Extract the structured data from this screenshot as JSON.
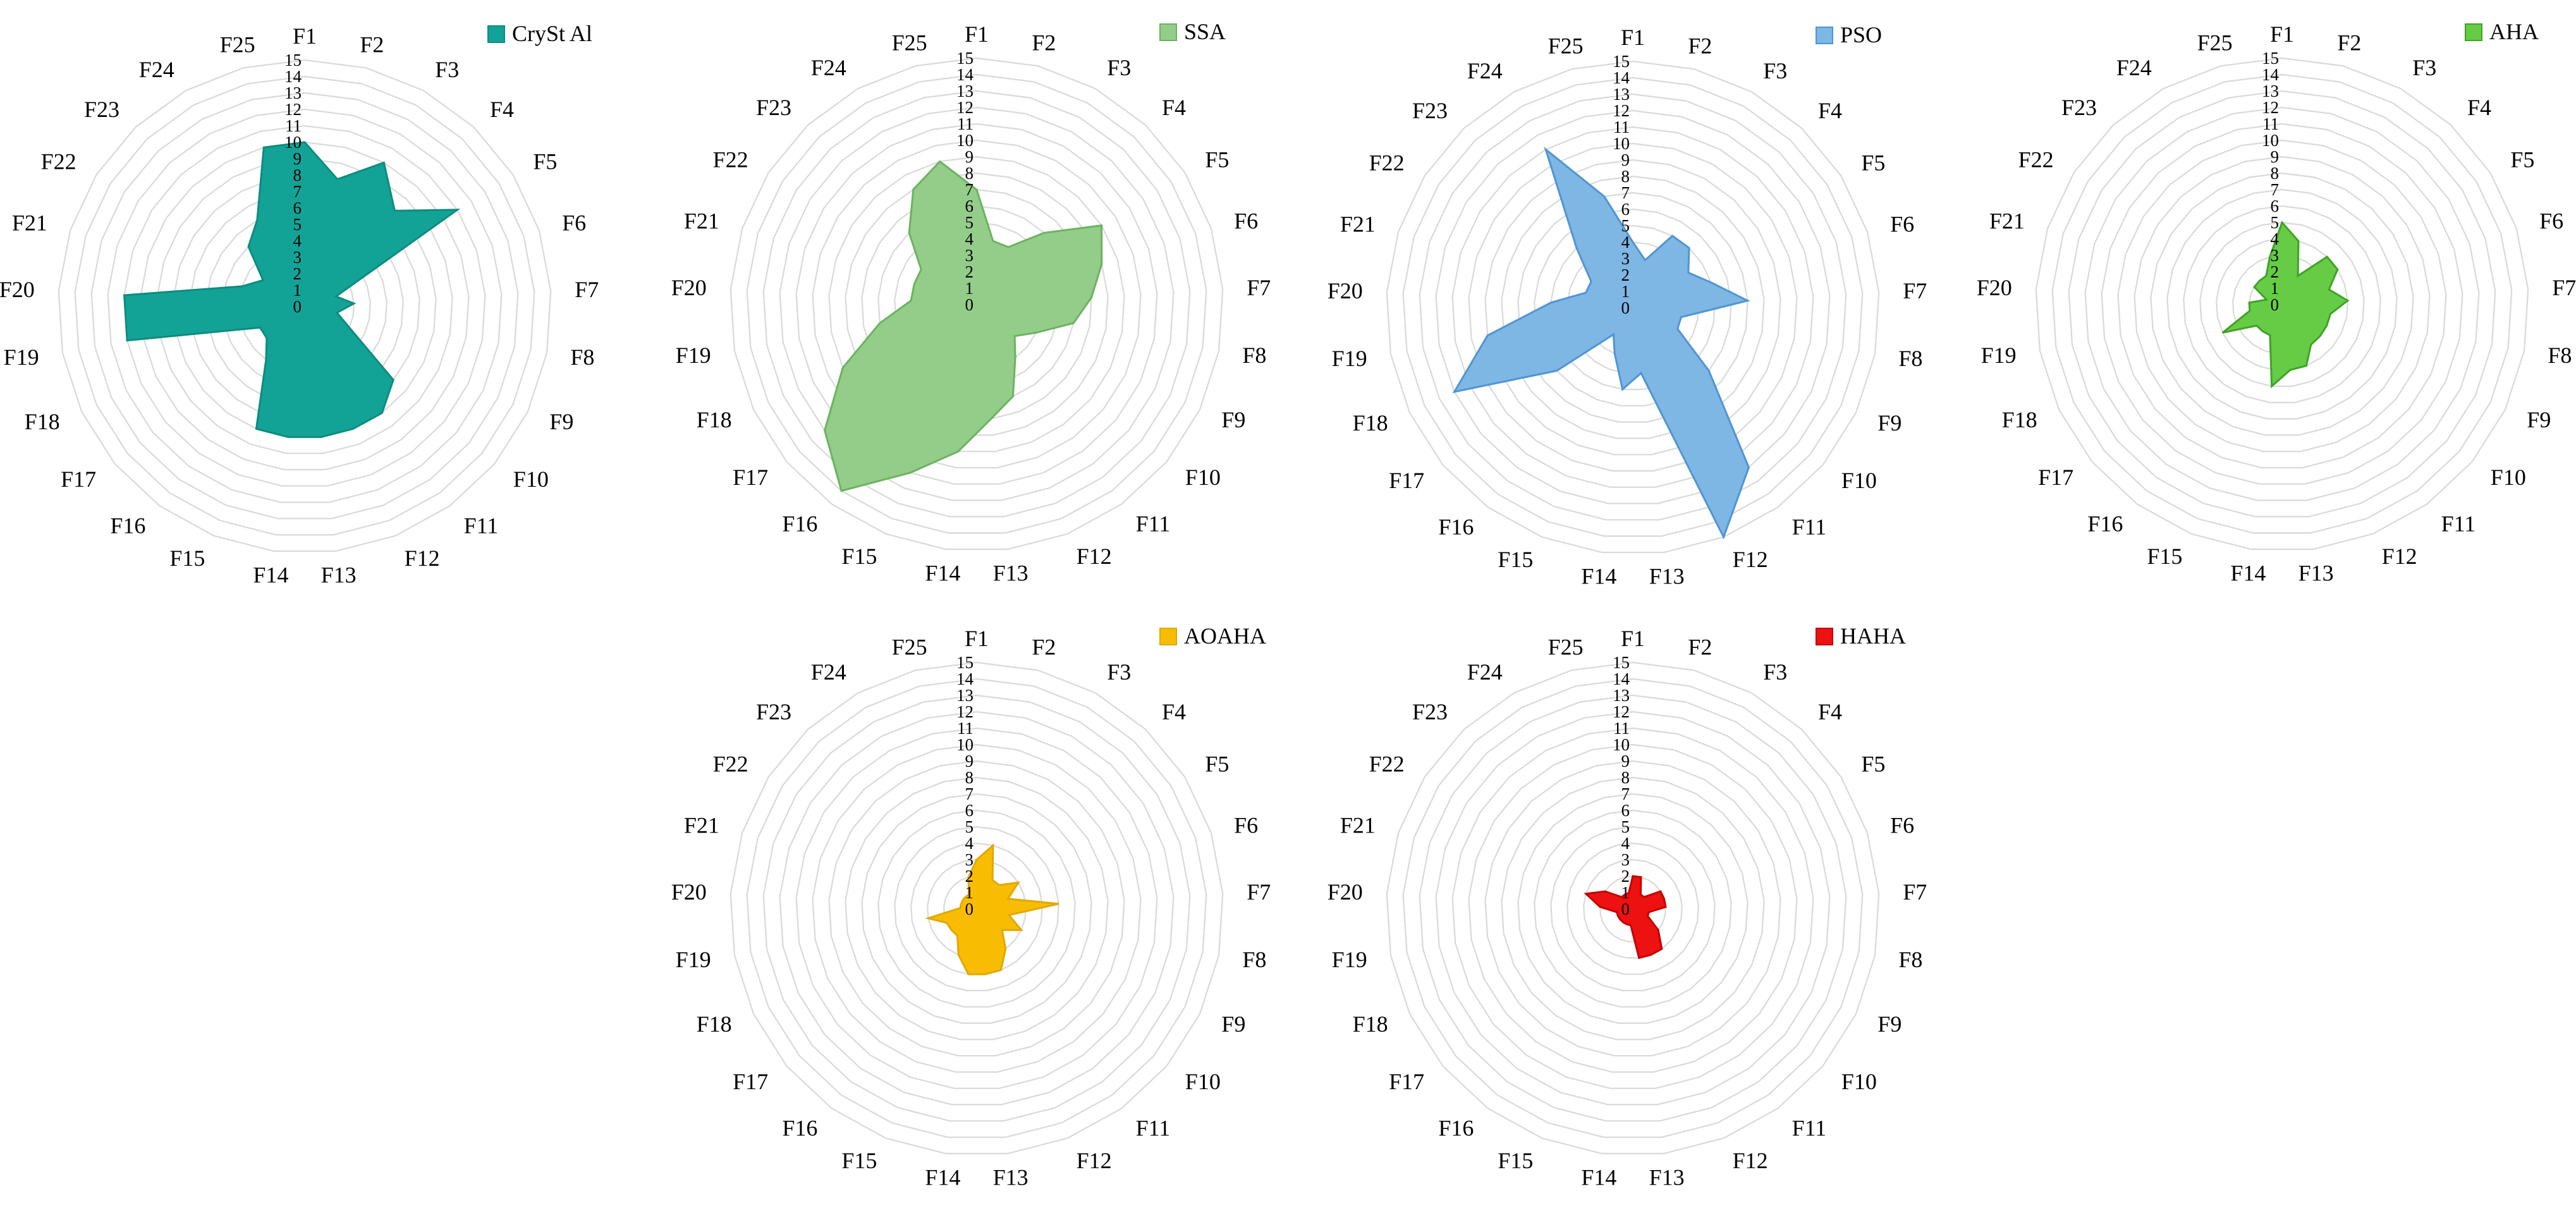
{
  "chart_data": [
    {
      "type": "radar",
      "series": [
        {
          "name": "CrySt Al",
          "values": [
            10,
            8,
            10,
            8,
            11,
            2,
            3,
            2,
            3,
            7,
            8,
            8,
            8,
            8,
            8,
            4,
            3,
            3,
            11,
            11,
            4,
            3,
            5,
            6,
            10
          ]
        }
      ],
      "categories": [
        "F1",
        "F2",
        "F3",
        "F4",
        "F5",
        "F6",
        "F7",
        "F8",
        "F9",
        "F10",
        "F11",
        "F12",
        "F13",
        "F14",
        "F15",
        "F16",
        "F17",
        "F18",
        "F19",
        "F20",
        "F21",
        "F22",
        "F23",
        "F24",
        "F25"
      ],
      "ticks": [
        "0",
        "1",
        "2",
        "3",
        "4",
        "5",
        "6",
        "7",
        "8",
        "9",
        "10",
        "11",
        "12",
        "13",
        "14",
        "15"
      ],
      "rmax": 15,
      "color": "#13a396",
      "stroke": "#0c8c80",
      "legend_position": "top-right",
      "grid": true
    },
    {
      "type": "radar",
      "series": [
        {
          "name": "SSA",
          "values": [
            7,
            4,
            4,
            6,
            9,
            8,
            7,
            6,
            4,
            3,
            4,
            6,
            7,
            9,
            11,
            14,
            12,
            9,
            6,
            4,
            4,
            4,
            6,
            8,
            9
          ]
        }
      ],
      "categories": [
        "F1",
        "F2",
        "F3",
        "F4",
        "F5",
        "F6",
        "F7",
        "F8",
        "F9",
        "F10",
        "F11",
        "F12",
        "F13",
        "F14",
        "F15",
        "F16",
        "F17",
        "F18",
        "F19",
        "F20",
        "F21",
        "F22",
        "F23",
        "F24",
        "F25"
      ],
      "ticks": [
        "0",
        "1",
        "2",
        "3",
        "4",
        "5",
        "6",
        "7",
        "8",
        "9",
        "10",
        "11",
        "12",
        "13",
        "14",
        "15"
      ],
      "rmax": 15,
      "color": "#93cd89",
      "stroke": "#6bb35f",
      "legend_position": "top-right",
      "grid": true
    },
    {
      "type": "radar",
      "series": [
        {
          "name": "PSO",
          "values": [
            4,
            3,
            5,
            5,
            4,
            5,
            7,
            3,
            3,
            6,
            12,
            15,
            4,
            5,
            3,
            2,
            6,
            12,
            9,
            5,
            3,
            3,
            5,
            11,
            7
          ]
        }
      ],
      "categories": [
        "F1",
        "F2",
        "F3",
        "F4",
        "F5",
        "F6",
        "F7",
        "F8",
        "F9",
        "F10",
        "F11",
        "F12",
        "F13",
        "F14",
        "F15",
        "F16",
        "F17",
        "F18",
        "F19",
        "F20",
        "F21",
        "F22",
        "F23",
        "F24",
        "F25"
      ],
      "ticks": [
        "0",
        "1",
        "2",
        "3",
        "4",
        "5",
        "6",
        "7",
        "8",
        "9",
        "10",
        "11",
        "12",
        "13",
        "14",
        "15"
      ],
      "rmax": 15,
      "color": "#7eb6e4",
      "stroke": "#4f95d2",
      "legend_position": "top-right",
      "grid": true
    },
    {
      "type": "radar",
      "series": [
        {
          "name": "AHA",
          "values": [
            5,
            4,
            2,
            4,
            4,
            3,
            4,
            3,
            3,
            3,
            3,
            4,
            4,
            5,
            2,
            2,
            2,
            4,
            2,
            2,
            1,
            2,
            2,
            2,
            3
          ]
        }
      ],
      "categories": [
        "F1",
        "F2",
        "F3",
        "F4",
        "F5",
        "F6",
        "F7",
        "F8",
        "F9",
        "F10",
        "F11",
        "F12",
        "F13",
        "F14",
        "F15",
        "F16",
        "F17",
        "F18",
        "F19",
        "F20",
        "F21",
        "F22",
        "F23",
        "F24",
        "F25"
      ],
      "ticks": [
        "0",
        "1",
        "2",
        "3",
        "4",
        "5",
        "6",
        "7",
        "8",
        "9",
        "10",
        "11",
        "12",
        "13",
        "14",
        "15"
      ],
      "rmax": 15,
      "color": "#66cc45",
      "stroke": "#3fa225",
      "legend_position": "top-right",
      "grid": true
    },
    {
      "type": "radar",
      "series": [
        {
          "name": "AOAHA",
          "values": [
            3,
            4,
            2,
            2,
            3,
            2,
            5,
            2,
            3,
            2,
            3,
            4,
            4,
            4,
            3,
            2,
            2,
            2,
            3,
            1,
            1,
            1,
            1,
            1,
            2
          ]
        }
      ],
      "categories": [
        "F1",
        "F2",
        "F3",
        "F4",
        "F5",
        "F6",
        "F7",
        "F8",
        "F9",
        "F10",
        "F11",
        "F12",
        "F13",
        "F14",
        "F15",
        "F16",
        "F17",
        "F18",
        "F19",
        "F20",
        "F21",
        "F22",
        "F23",
        "F24",
        "F25"
      ],
      "ticks": [
        "0",
        "1",
        "2",
        "3",
        "4",
        "5",
        "6",
        "7",
        "8",
        "9",
        "10",
        "11",
        "12",
        "13",
        "14",
        "15"
      ],
      "rmax": 15,
      "color": "#f8bd02",
      "stroke": "#e0a800",
      "legend_position": "top-right",
      "grid": true
    },
    {
      "type": "radar",
      "series": [
        {
          "name": "HAHA",
          "values": [
            2,
            2,
            1,
            1,
            2,
            2,
            2,
            1,
            1,
            2,
            3,
            3,
            3,
            1,
            1,
            1,
            1,
            1,
            1,
            2,
            3,
            2,
            1,
            1,
            1
          ]
        }
      ],
      "categories": [
        "F1",
        "F2",
        "F3",
        "F4",
        "F5",
        "F6",
        "F7",
        "F8",
        "F9",
        "F10",
        "F11",
        "F12",
        "F13",
        "F14",
        "F15",
        "F16",
        "F17",
        "F18",
        "F19",
        "F20",
        "F21",
        "F22",
        "F23",
        "F24",
        "F25"
      ],
      "ticks": [
        "0",
        "1",
        "2",
        "3",
        "4",
        "5",
        "6",
        "7",
        "8",
        "9",
        "10",
        "11",
        "12",
        "13",
        "14",
        "15"
      ],
      "rmax": 15,
      "color": "#ee1111",
      "stroke": "#c40000",
      "legend_position": "top-right",
      "grid": true
    }
  ]
}
